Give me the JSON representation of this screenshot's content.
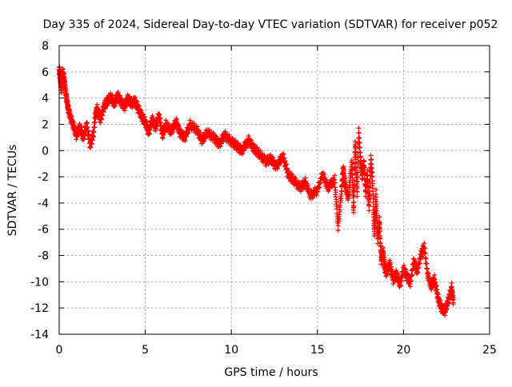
{
  "chart_data": {
    "type": "scatter",
    "title": "Day 335 of 2024, Sidereal Day-to-day VTEC variation (SDTVAR) for receiver p052",
    "xlabel": "GPS time / hours",
    "ylabel": "SDTVAR / TECUs",
    "xlim": [
      0,
      25
    ],
    "ylim": [
      -14,
      8
    ],
    "xticks": [
      0,
      5,
      10,
      15,
      20,
      25
    ],
    "yticks": [
      8,
      6,
      4,
      2,
      0,
      -2,
      -4,
      -6,
      -8,
      -10,
      -12,
      -14
    ],
    "grid": true,
    "marker": "+",
    "series": [
      {
        "name": "SDTVAR",
        "color": "#ff0000",
        "x": [
          0.0,
          0.05,
          0.1,
          0.15,
          0.2,
          0.3,
          0.4,
          0.5,
          0.6,
          0.8,
          1.0,
          1.2,
          1.4,
          1.6,
          1.8,
          2.0,
          2.1,
          2.2,
          2.4,
          2.6,
          2.8,
          3.0,
          3.2,
          3.4,
          3.6,
          3.8,
          4.0,
          4.2,
          4.4,
          4.6,
          4.8,
          5.0,
          5.2,
          5.4,
          5.6,
          5.8,
          6.0,
          6.2,
          6.5,
          6.8,
          7.0,
          7.3,
          7.6,
          8.0,
          8.3,
          8.6,
          9.0,
          9.3,
          9.6,
          10.0,
          10.3,
          10.6,
          11.0,
          11.3,
          11.6,
          12.0,
          12.3,
          12.6,
          13.0,
          13.3,
          13.6,
          14.0,
          14.3,
          14.6,
          15.0,
          15.3,
          15.6,
          16.0,
          16.2,
          16.4,
          16.5,
          16.6,
          16.8,
          17.0,
          17.1,
          17.2,
          17.3,
          17.4,
          17.5,
          17.6,
          17.7,
          17.8,
          17.9,
          18.0,
          18.1,
          18.2,
          18.3,
          18.4,
          18.5,
          18.6,
          18.7,
          18.8,
          18.9,
          19.0,
          19.2,
          19.4,
          19.6,
          19.8,
          20.0,
          20.2,
          20.4,
          20.6,
          20.8,
          21.0,
          21.2,
          21.4,
          21.6,
          21.8,
          22.0,
          22.2,
          22.4,
          22.6,
          22.8,
          22.9
        ],
        "y": [
          6.0,
          5.5,
          4.8,
          4.5,
          5.8,
          5.2,
          4.0,
          3.2,
          2.6,
          1.8,
          1.0,
          1.6,
          0.8,
          1.8,
          0.2,
          1.2,
          2.5,
          3.0,
          2.2,
          3.2,
          3.6,
          3.9,
          3.4,
          4.0,
          3.5,
          3.2,
          3.8,
          3.4,
          3.6,
          3.0,
          2.4,
          2.0,
          1.2,
          2.2,
          1.6,
          2.5,
          1.0,
          1.8,
          1.3,
          2.0,
          1.2,
          0.8,
          1.8,
          1.4,
          0.6,
          1.2,
          0.8,
          0.3,
          1.0,
          0.5,
          0.2,
          -0.2,
          0.6,
          0.0,
          -0.4,
          -1.0,
          -0.8,
          -1.4,
          -0.6,
          -2.0,
          -2.4,
          -3.0,
          -2.6,
          -3.6,
          -3.2,
          -2.0,
          -3.0,
          -2.4,
          -6.0,
          -3.2,
          -1.5,
          -2.8,
          -3.8,
          -1.0,
          -4.8,
          0.5,
          -3.5,
          1.2,
          -0.8,
          -2.2,
          -1.0,
          -3.5,
          -2.0,
          -4.5,
          -0.8,
          -2.5,
          -6.5,
          -3.5,
          -7.0,
          -5.5,
          -8.5,
          -7.8,
          -9.0,
          -9.5,
          -8.8,
          -10.0,
          -9.6,
          -10.4,
          -9.2,
          -9.8,
          -10.2,
          -8.6,
          -9.4,
          -8.2,
          -7.5,
          -9.6,
          -10.5,
          -10.0,
          -11.4,
          -12.2,
          -12.4,
          -11.6,
          -10.6,
          -11.8
        ]
      }
    ]
  }
}
